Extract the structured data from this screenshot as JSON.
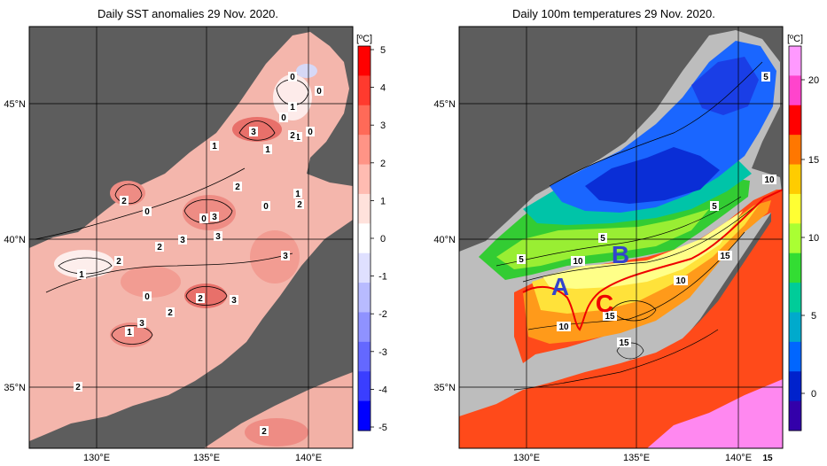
{
  "maps": [
    {
      "id": "sst-anomalies",
      "title": "Daily SST anomalies 29 Nov. 2020.",
      "colorbar": {
        "unit": "[ºC]",
        "ticks": [
          "5",
          "4",
          "3",
          "2",
          "1",
          "0",
          "-1",
          "-2",
          "-3",
          "-4",
          "-5"
        ],
        "colors": [
          "#ff0000",
          "#ff3a2e",
          "#ff6a58",
          "#ff9486",
          "#ffbcb2",
          "#ffe2dc",
          "#ffffff",
          "#dfe0ff",
          "#b8bbff",
          "#8f92ff",
          "#6468ff",
          "#3a3eff",
          "#0000ff"
        ]
      },
      "lat_labels": [
        "45°N",
        "40°N",
        "35°N"
      ],
      "lon_labels": [
        "130°E",
        "135°E",
        "140°E"
      ],
      "contour_labels": [
        "0",
        "0",
        "1",
        "0",
        "1",
        "0",
        "3",
        "2",
        "1",
        "1",
        "2",
        "2",
        "0",
        "0",
        "1",
        "2",
        "0",
        "3",
        "3",
        "2",
        "3",
        "2",
        "1",
        "0",
        "2",
        "3",
        "2",
        "1",
        "3",
        "2",
        "2",
        "3"
      ]
    },
    {
      "id": "temp-100m",
      "title": "Daily 100m temperatures 29 Nov. 2020.",
      "colorbar": {
        "unit": "[ºC]",
        "ticks": [
          "20",
          "15",
          "10",
          "5",
          "0"
        ],
        "colors": [
          "#ff99ff",
          "#ff44cc",
          "#ff0000",
          "#ff7700",
          "#ffcc00",
          "#ffff33",
          "#aaff33",
          "#33dd33",
          "#00cc99",
          "#00aacc",
          "#0066ff",
          "#0022cc",
          "#3300aa"
        ]
      },
      "lat_labels": [
        "45°N",
        "40°N",
        "35°N"
      ],
      "lon_labels": [
        "130°E",
        "135°E",
        "140°E"
      ],
      "contour_labels": [
        "5",
        "10",
        "5",
        "5",
        "5",
        "10",
        "15",
        "10",
        "15",
        "10",
        "15",
        "15"
      ],
      "region_labels": [
        "A",
        "B",
        "C"
      ],
      "colors": {
        "region_label": "#3344cc",
        "front_line": "#ee0000"
      }
    }
  ]
}
